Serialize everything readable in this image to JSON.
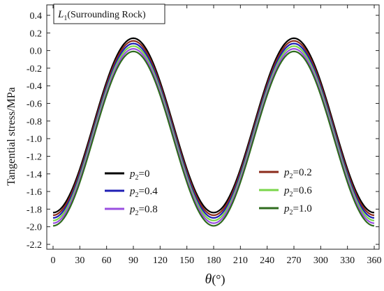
{
  "chart_data": {
    "type": "line",
    "xlabel_symbol": "θ",
    "xlabel_unit": "(°)",
    "ylabel": "Tangential stress/MPa",
    "xlim": [
      0,
      360
    ],
    "ylim": [
      -2.2,
      0.4
    ],
    "x_ticks": [
      "0",
      "30",
      "60",
      "90",
      "120",
      "150",
      "180",
      "210",
      "240",
      "270",
      "300",
      "330",
      "360"
    ],
    "y_ticks": [
      "0.4",
      "0.2",
      "0.0",
      "-0.2",
      "-0.4",
      "-0.6",
      "-0.8",
      "-1.0",
      "-1.2",
      "-1.4",
      "-1.6",
      "-1.8",
      "-2.0",
      "-2.2"
    ],
    "grid": false,
    "annotation": {
      "symbol": "L",
      "subscript": "1",
      "text": "(Surrounding Rock)"
    },
    "legend_position": "lower-center, two groups",
    "series": [
      {
        "name": "p2=0",
        "var": "p",
        "sub": "2",
        "val": "=0",
        "color": "#000000",
        "peak": 0.14,
        "trough": -1.84
      },
      {
        "name": "p2=0.2",
        "var": "p",
        "sub": "2",
        "val": "=0.2",
        "color": "#8b2a1a",
        "peak": 0.11,
        "trough": -1.87
      },
      {
        "name": "p2=0.4",
        "var": "p",
        "sub": "2",
        "val": "=0.4",
        "color": "#1f1fb4",
        "peak": 0.08,
        "trough": -1.9
      },
      {
        "name": "p2=0.6",
        "var": "p",
        "sub": "2",
        "val": "=0.6",
        "color": "#7ad64a",
        "peak": 0.05,
        "trough": -1.93
      },
      {
        "name": "p2=0.8",
        "var": "p",
        "sub": "2",
        "val": "=0.8",
        "color": "#9a4fe0",
        "peak": 0.02,
        "trough": -1.96
      },
      {
        "name": "p2=1.0",
        "var": "p",
        "sub": "2",
        "val": "=1.0",
        "color": "#2f6b1e",
        "peak": -0.01,
        "trough": -1.99
      }
    ]
  }
}
